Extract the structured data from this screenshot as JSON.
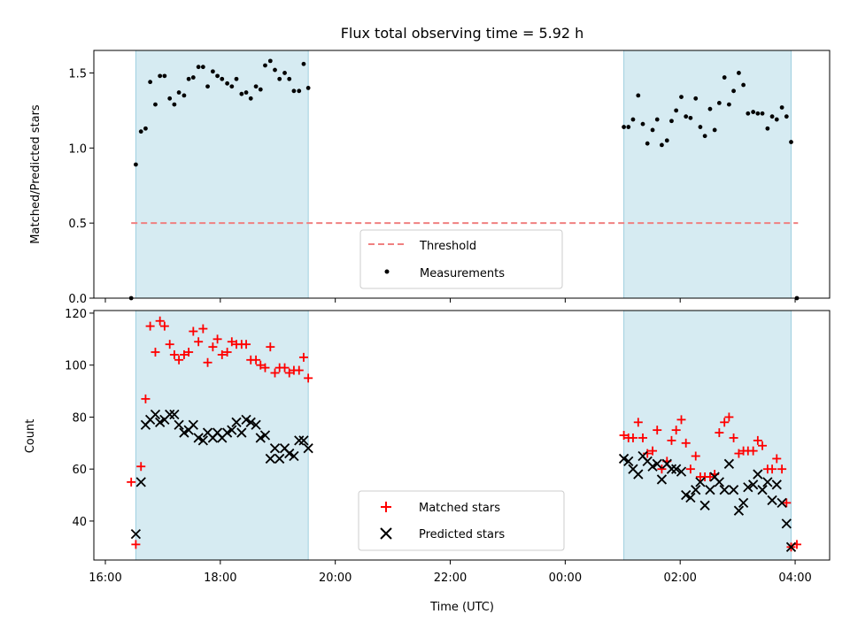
{
  "chart_data": [
    {
      "type": "scatter",
      "title": "Flux total observing time = 5.92 h",
      "xlabel": "",
      "ylabel": "Matched/Predicted stars",
      "xlim": [
        15.8,
        28.6
      ],
      "ylim": [
        0,
        1.65
      ],
      "yticks": [
        0,
        0.5,
        1.0,
        1.5
      ],
      "ytick_labels": [
        "0.0",
        "0.5",
        "1.0",
        "1.5"
      ],
      "grid": false,
      "legend": "lower center",
      "shaded_intervals": [
        [
          16.53,
          19.53
        ],
        [
          25.02,
          27.93
        ]
      ],
      "threshold": {
        "name": "Threshold",
        "value": 0.5,
        "x": [
          16.45,
          28.05
        ],
        "color": "#f08080"
      },
      "series": [
        {
          "name": "Measurements",
          "marker": "dot",
          "color": "#000000",
          "x": [
            16.45,
            16.53,
            16.62,
            16.7,
            16.78,
            16.87,
            16.95,
            17.03,
            17.12,
            17.2,
            17.28,
            17.37,
            17.45,
            17.53,
            17.62,
            17.7,
            17.78,
            17.87,
            17.95,
            18.03,
            18.12,
            18.2,
            18.28,
            18.37,
            18.45,
            18.53,
            18.62,
            18.7,
            18.78,
            18.87,
            18.95,
            19.03,
            19.12,
            19.2,
            19.28,
            19.37,
            19.45,
            19.53,
            25.02,
            25.1,
            25.18,
            25.27,
            25.35,
            25.43,
            25.52,
            25.6,
            25.68,
            25.77,
            25.85,
            25.93,
            26.02,
            26.1,
            26.18,
            26.27,
            26.35,
            26.43,
            26.52,
            26.6,
            26.68,
            26.77,
            26.85,
            26.93,
            27.02,
            27.1,
            27.18,
            27.27,
            27.35,
            27.43,
            27.52,
            27.6,
            27.68,
            27.77,
            27.85,
            27.93,
            28.03
          ],
          "y": [
            0.0,
            0.89,
            1.11,
            1.13,
            1.44,
            1.29,
            1.48,
            1.48,
            1.33,
            1.29,
            1.37,
            1.35,
            1.46,
            1.47,
            1.54,
            1.54,
            1.41,
            1.51,
            1.48,
            1.46,
            1.43,
            1.41,
            1.46,
            1.36,
            1.37,
            1.33,
            1.41,
            1.39,
            1.55,
            1.58,
            1.52,
            1.46,
            1.5,
            1.46,
            1.38,
            1.38,
            1.56,
            1.4,
            1.14,
            1.14,
            1.19,
            1.35,
            1.16,
            1.03,
            1.12,
            1.19,
            1.02,
            1.05,
            1.18,
            1.25,
            1.34,
            1.21,
            1.2,
            1.33,
            1.14,
            1.08,
            1.26,
            1.12,
            1.3,
            1.47,
            1.29,
            1.38,
            1.5,
            1.42,
            1.23,
            1.24,
            1.23,
            1.23,
            1.13,
            1.21,
            1.19,
            1.27,
            1.21,
            1.04,
            0.0
          ]
        }
      ]
    },
    {
      "type": "scatter",
      "title": "",
      "xlabel": "Time (UTC)",
      "ylabel": "Count",
      "xlim": [
        15.8,
        28.6
      ],
      "ylim": [
        25,
        121
      ],
      "yticks": [
        40,
        60,
        80,
        100,
        120
      ],
      "ytick_labels": [
        "40",
        "60",
        "80",
        "100",
        "120"
      ],
      "xticks": [
        16,
        18,
        20,
        22,
        24,
        26,
        28
      ],
      "xtick_labels": [
        "16:00",
        "18:00",
        "20:00",
        "22:00",
        "00:00",
        "02:00",
        "04:00"
      ],
      "grid": false,
      "legend": "lower center",
      "shaded_intervals": [
        [
          16.53,
          19.53
        ],
        [
          25.02,
          27.93
        ]
      ],
      "series": [
        {
          "name": "Matched stars",
          "marker": "plus",
          "color": "#ff0000",
          "x": [
            16.45,
            16.53,
            16.62,
            16.7,
            16.78,
            16.87,
            16.95,
            17.03,
            17.12,
            17.2,
            17.28,
            17.37,
            17.45,
            17.53,
            17.62,
            17.7,
            17.78,
            17.87,
            17.95,
            18.03,
            18.12,
            18.2,
            18.28,
            18.37,
            18.45,
            18.53,
            18.62,
            18.7,
            18.78,
            18.87,
            18.95,
            19.03,
            19.12,
            19.2,
            19.28,
            19.37,
            19.45,
            19.53,
            25.02,
            25.1,
            25.18,
            25.27,
            25.35,
            25.43,
            25.52,
            25.6,
            25.68,
            25.77,
            25.85,
            25.93,
            26.02,
            26.1,
            26.18,
            26.27,
            26.35,
            26.43,
            26.52,
            26.6,
            26.68,
            26.77,
            26.85,
            26.93,
            27.02,
            27.1,
            27.18,
            27.27,
            27.35,
            27.43,
            27.52,
            27.6,
            27.68,
            27.77,
            27.85,
            27.93,
            28.03
          ],
          "y": [
            55,
            31,
            61,
            87,
            115,
            105,
            117,
            115,
            108,
            104,
            102,
            104,
            105,
            113,
            109,
            114,
            101,
            107,
            110,
            104,
            105,
            109,
            108,
            108,
            108,
            102,
            102,
            100,
            99,
            107,
            97,
            99,
            99,
            97,
            98,
            98,
            103,
            95,
            73,
            72,
            72,
            78,
            72,
            66,
            67,
            75,
            60,
            63,
            71,
            75,
            79,
            70,
            60,
            65,
            57,
            57,
            57,
            58,
            74,
            78,
            80,
            72,
            66,
            67,
            67,
            67,
            71,
            69,
            60,
            60,
            64,
            60,
            47,
            30,
            31
          ]
        },
        {
          "name": "Predicted stars",
          "marker": "x",
          "color": "#000000",
          "x": [
            16.53,
            16.62,
            16.7,
            16.78,
            16.87,
            16.95,
            17.03,
            17.12,
            17.2,
            17.28,
            17.37,
            17.45,
            17.53,
            17.62,
            17.7,
            17.78,
            17.87,
            17.95,
            18.03,
            18.12,
            18.2,
            18.28,
            18.37,
            18.45,
            18.53,
            18.62,
            18.7,
            18.78,
            18.87,
            18.95,
            19.03,
            19.12,
            19.2,
            19.28,
            19.37,
            19.45,
            19.53,
            25.02,
            25.1,
            25.18,
            25.27,
            25.35,
            25.43,
            25.52,
            25.6,
            25.68,
            25.77,
            25.85,
            25.93,
            26.02,
            26.1,
            26.18,
            26.27,
            26.35,
            26.43,
            26.52,
            26.6,
            26.68,
            26.77,
            26.85,
            26.93,
            27.02,
            27.1,
            27.18,
            27.27,
            27.35,
            27.43,
            27.52,
            27.6,
            27.68,
            27.77,
            27.85,
            27.93
          ],
          "y": [
            35,
            55,
            77,
            79,
            81,
            78,
            79,
            81,
            81,
            77,
            74,
            75,
            77,
            72,
            71,
            74,
            72,
            74,
            72,
            74,
            75,
            78,
            74,
            79,
            78,
            77,
            72,
            73,
            64,
            68,
            64,
            68,
            66,
            65,
            71,
            71,
            68,
            64,
            63,
            60,
            58,
            65,
            63,
            61,
            62,
            56,
            62,
            60,
            60,
            59,
            50,
            49,
            52,
            55,
            46,
            52,
            57,
            55,
            52,
            62,
            52,
            44,
            47,
            53,
            54,
            58,
            52,
            55,
            48,
            54,
            47,
            39,
            30
          ]
        }
      ]
    }
  ]
}
